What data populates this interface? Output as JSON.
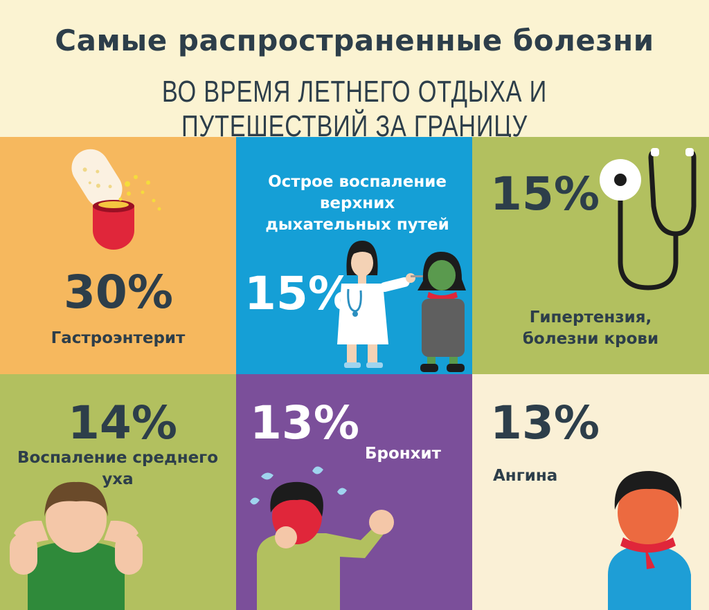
{
  "header": {
    "title": "Самые распространенные болезни",
    "subtitle": "во время летнего отдыха и путешествий за границу"
  },
  "colors": {
    "background": "#fbf3d2",
    "orange": "#f6b85e",
    "blue": "#159fd6",
    "green": "#b2c05f",
    "purple": "#7b4f9a",
    "cream": "#faf0d6",
    "text_dark": "#2d3e4a",
    "white": "#ffffff"
  },
  "tiles": [
    {
      "percent": "30%",
      "label": "Гастроэнтерит",
      "icon": "pill-capsule-icon"
    },
    {
      "percent": "15%",
      "label": "Острое воспаление верхних дыхательных путей",
      "icon": "doctor-and-patient-icon"
    },
    {
      "percent": "15%",
      "label": "Гипертензия, болезни крови",
      "icon": "stethoscope-icon"
    },
    {
      "percent": "14%",
      "label": "Воспаление среднего уха",
      "icon": "child-covering-ears-icon"
    },
    {
      "percent": "13%",
      "label": "Бронхит",
      "icon": "coughing-child-icon"
    },
    {
      "percent": "13%",
      "label": "Ангина",
      "icon": "child-with-scarf-icon"
    }
  ]
}
